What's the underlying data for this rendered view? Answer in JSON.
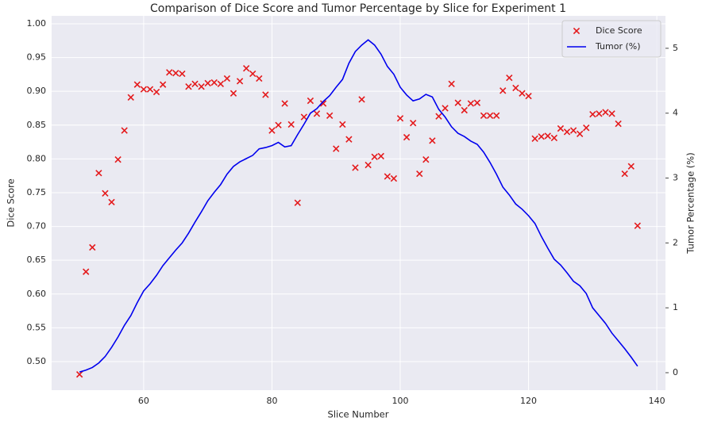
{
  "chart_data": {
    "type": "line",
    "title": "Comparison of Dice Score and Tumor Percentage by Slice for Experiment 1",
    "x_label": "Slice Number",
    "y_label": "Dice Score",
    "y2_label": "Tumor Percentage (%)",
    "x": [
      50,
      51,
      52,
      53,
      54,
      55,
      56,
      57,
      58,
      59,
      60,
      61,
      62,
      63,
      64,
      65,
      66,
      67,
      68,
      69,
      70,
      71,
      72,
      73,
      74,
      75,
      76,
      77,
      78,
      79,
      80,
      81,
      82,
      83,
      84,
      85,
      86,
      87,
      88,
      89,
      90,
      91,
      92,
      93,
      94,
      95,
      96,
      97,
      98,
      99,
      100,
      101,
      102,
      103,
      104,
      105,
      106,
      107,
      108,
      109,
      110,
      111,
      112,
      113,
      114,
      115,
      116,
      117,
      118,
      119,
      120,
      121,
      122,
      123,
      124,
      125,
      126,
      127,
      128,
      129,
      130,
      131,
      132,
      133,
      134,
      135,
      136,
      137
    ],
    "series": [
      {
        "name": "Dice Score",
        "type": "scatter",
        "marker": "x",
        "color": "#e41a1c",
        "axis": "y",
        "values": [
          0.481,
          0.633,
          0.669,
          0.779,
          0.749,
          0.736,
          0.799,
          0.842,
          0.891,
          0.91,
          0.903,
          0.903,
          0.899,
          0.91,
          0.928,
          0.927,
          0.926,
          0.907,
          0.911,
          0.907,
          0.912,
          0.913,
          0.911,
          0.919,
          0.897,
          0.915,
          0.934,
          0.926,
          0.919,
          0.895,
          0.842,
          0.85,
          0.882,
          0.851,
          0.735,
          0.862,
          0.886,
          0.867,
          0.882,
          0.864,
          0.815,
          0.851,
          0.829,
          0.787,
          0.888,
          0.791,
          0.803,
          0.804,
          0.774,
          0.771,
          0.86,
          0.832,
          0.853,
          0.778,
          0.799,
          0.827,
          0.863,
          0.875,
          0.911,
          0.883,
          0.872,
          0.882,
          0.883,
          0.864,
          0.864,
          0.864,
          0.901,
          0.92,
          0.905,
          0.897,
          0.893,
          0.83,
          0.833,
          0.834,
          0.831,
          0.845,
          0.84,
          0.842,
          0.837,
          0.846,
          0.866,
          0.867,
          0.869,
          0.867,
          0.852,
          0.778,
          0.789,
          0.701
        ]
      },
      {
        "name": "Tumor (%)",
        "type": "line",
        "color": "#0000ee",
        "axis": "y2",
        "values": [
          0.01,
          0.04,
          0.08,
          0.15,
          0.25,
          0.39,
          0.55,
          0.73,
          0.88,
          1.08,
          1.26,
          1.37,
          1.5,
          1.65,
          1.77,
          1.89,
          2.0,
          2.15,
          2.32,
          2.48,
          2.65,
          2.78,
          2.9,
          3.06,
          3.18,
          3.25,
          3.3,
          3.35,
          3.45,
          3.47,
          3.5,
          3.55,
          3.48,
          3.5,
          3.67,
          3.83,
          4.0,
          4.07,
          4.18,
          4.27,
          4.4,
          4.52,
          4.77,
          4.95,
          5.05,
          5.13,
          5.05,
          4.91,
          4.72,
          4.6,
          4.4,
          4.28,
          4.19,
          4.22,
          4.29,
          4.25,
          4.06,
          3.94,
          3.79,
          3.69,
          3.64,
          3.57,
          3.52,
          3.4,
          3.24,
          3.06,
          2.86,
          2.74,
          2.6,
          2.52,
          2.42,
          2.3,
          2.1,
          1.92,
          1.75,
          1.66,
          1.54,
          1.41,
          1.34,
          1.22,
          1.0,
          0.88,
          0.76,
          0.61,
          0.49,
          0.37,
          0.24,
          0.1
        ]
      }
    ],
    "xlim": [
      45.65,
      141.35
    ],
    "xticks": [
      60,
      80,
      100,
      120,
      140
    ],
    "ylim": [
      0.4577,
      1.0117
    ],
    "yticks": [
      {
        "value": 0.5,
        "label": "0.50"
      },
      {
        "value": 0.55,
        "label": "0.55"
      },
      {
        "value": 0.6,
        "label": "0.60"
      },
      {
        "value": 0.65,
        "label": "0.65"
      },
      {
        "value": 0.7,
        "label": "0.70"
      },
      {
        "value": 0.75,
        "label": "0.75"
      },
      {
        "value": 0.8,
        "label": "0.80"
      },
      {
        "value": 0.85,
        "label": "0.85"
      },
      {
        "value": 0.9,
        "label": "0.90"
      },
      {
        "value": 0.95,
        "label": "0.95"
      },
      {
        "value": 1.0,
        "label": "1.00"
      }
    ],
    "y2lim": [
      -0.269,
      5.5
    ],
    "y2ticks": [
      0,
      1,
      2,
      3,
      4,
      5
    ],
    "grid": true,
    "legend": "upper right"
  }
}
